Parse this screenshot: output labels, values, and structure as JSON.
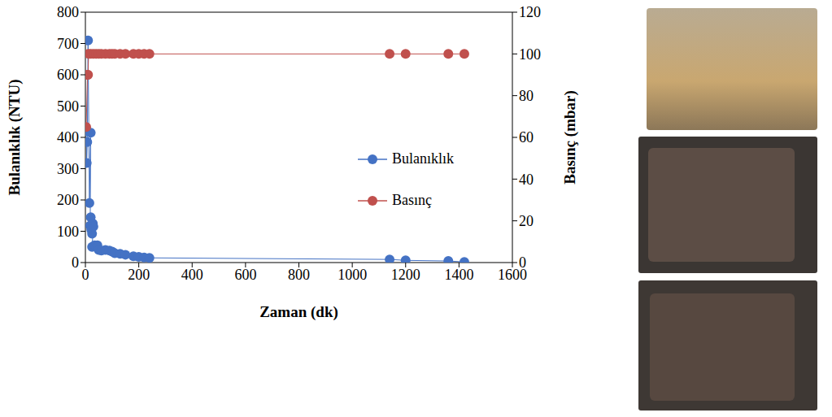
{
  "chart_data": {
    "type": "line",
    "x_label": "Zaman (dk)",
    "y_label": "Bulanıklık (NTU)",
    "y2_label": "Basınç (mbar)",
    "xlim": [
      0,
      1600
    ],
    "xticks": [
      0,
      200,
      400,
      600,
      800,
      1000,
      1200,
      1400,
      1600
    ],
    "ylim": [
      0,
      800
    ],
    "yticks": [
      0,
      100,
      200,
      300,
      400,
      500,
      600,
      700,
      800
    ],
    "y2lim": [
      0,
      120
    ],
    "y2ticks": [
      0,
      20,
      40,
      60,
      80,
      100,
      120
    ],
    "grid": false,
    "legend": "right",
    "series": [
      {
        "name": "Bulanıklık",
        "color": "#4472c4",
        "marker": "circle",
        "axis": "y",
        "x": [
          3,
          5,
          7,
          10,
          15,
          20,
          18,
          20,
          22,
          25,
          28,
          30,
          25,
          35,
          45,
          50,
          60,
          75,
          90,
          100,
          110,
          130,
          150,
          180,
          200,
          220,
          240,
          1140,
          1200,
          1360,
          1420
        ],
        "values": [
          420,
          318,
          385,
          710,
          190,
          415,
          118,
          145,
          105,
          92,
          125,
          115,
          50,
          55,
          55,
          40,
          38,
          40,
          38,
          35,
          30,
          28,
          25,
          20,
          18,
          16,
          15,
          10,
          7,
          5,
          2
        ]
      },
      {
        "name": "Basınç",
        "color": "#c0504d",
        "marker": "circle",
        "axis": "y2",
        "x": [
          3,
          8,
          10,
          12,
          20,
          30,
          40,
          50,
          60,
          75,
          90,
          100,
          110,
          130,
          150,
          180,
          200,
          220,
          240,
          1140,
          1200,
          1360,
          1420
        ],
        "values": [
          65,
          90,
          90,
          100,
          100,
          100,
          100,
          100,
          100,
          100,
          100,
          100,
          100,
          100,
          100,
          100,
          100,
          100,
          100,
          100,
          100,
          100,
          100
        ]
      }
    ]
  }
}
